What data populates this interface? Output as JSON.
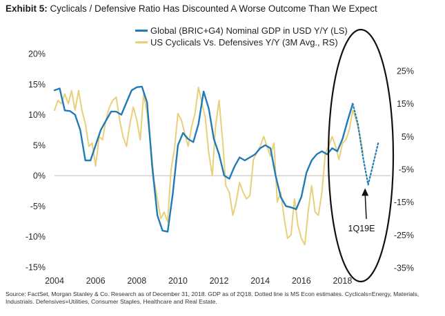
{
  "header": {
    "exhibit_label": "Exhibit 5:",
    "title_text": "Cyclicals / Defensive Ratio Has Discounted A Worse Outcome Than We Expect"
  },
  "source_note": "Source: FactSet, Morgan Stanley & Co. Research as of December 31, 2018. GDP as of 2Q18. Dotted line is MS Econ estimates. Cyclicals=Energy, Materials, Industrials. Defensives=Utilities, Consumer Staples, Healthcare and Real Estate.",
  "colors": {
    "gdp": "#1f7ab8",
    "cyc": "#e8cf7a",
    "axis": "#bbbbbb",
    "ellipse": "#111111"
  },
  "chart_data": {
    "type": "line",
    "title": "Exhibit 5: Cyclicals / Defensive Ratio Has Discounted A Worse Outcome Than We Expect",
    "xlabel": "",
    "ylabel": "",
    "xlim": [
      2004.0,
      2020.0
    ],
    "x_ticks": [
      2004,
      2006,
      2008,
      2010,
      2012,
      2014,
      2016,
      2018
    ],
    "x_tick_labels": [
      "2004",
      "2006",
      "2008",
      "2010",
      "2012",
      "2014",
      "2016",
      "2018"
    ],
    "y_left": {
      "range": [
        -15,
        20
      ],
      "ticks": [
        20,
        15,
        10,
        5,
        0,
        -5,
        -10,
        -15
      ],
      "tick_labels": [
        "20%",
        "15%",
        "10%",
        "5%",
        "0%",
        "-5%",
        "-10%",
        "-15%"
      ]
    },
    "y_right": {
      "range": [
        -35,
        25
      ],
      "ticks": [
        25,
        15,
        5,
        -5,
        -15,
        -25,
        -35
      ],
      "tick_labels": [
        "25%",
        "15%",
        "5%",
        "-5%",
        "-15%",
        "-25%",
        "-35%"
      ]
    },
    "series": [
      {
        "name": "Global (BRIC+G4) Nominal GDP in USD Y/Y (LS)",
        "axis": "left",
        "style": "solid",
        "x": [
          2004.0,
          2004.25,
          2004.5,
          2004.75,
          2005.0,
          2005.25,
          2005.5,
          2005.75,
          2006.0,
          2006.25,
          2006.5,
          2006.75,
          2007.0,
          2007.25,
          2007.5,
          2007.75,
          2008.0,
          2008.25,
          2008.5,
          2008.75,
          2009.0,
          2009.25,
          2009.5,
          2009.75,
          2010.0,
          2010.25,
          2010.5,
          2010.75,
          2011.0,
          2011.25,
          2011.5,
          2011.75,
          2012.0,
          2012.25,
          2012.5,
          2012.75,
          2013.0,
          2013.25,
          2013.5,
          2013.75,
          2014.0,
          2014.25,
          2014.5,
          2014.75,
          2015.0,
          2015.25,
          2015.5,
          2015.75,
          2016.0,
          2016.25,
          2016.5,
          2016.75,
          2017.0,
          2017.25,
          2017.5,
          2017.75,
          2018.0,
          2018.25,
          2018.5
        ],
        "y": [
          14.0,
          14.3,
          10.7,
          10.6,
          10.0,
          7.5,
          2.5,
          2.5,
          5.0,
          7.5,
          9.0,
          10.5,
          10.5,
          10.0,
          12.0,
          14.0,
          14.5,
          14.6,
          12.0,
          1.5,
          -6.5,
          -9.0,
          -9.2,
          -3.0,
          5.0,
          7.0,
          6.0,
          5.5,
          8.5,
          13.8,
          11.0,
          6.0,
          3.5,
          0.0,
          -0.5,
          1.5,
          3.0,
          2.5,
          3.0,
          3.5,
          4.5,
          5.0,
          4.5,
          0.0,
          -3.5,
          -5.0,
          -5.2,
          -5.5,
          -3.5,
          0.5,
          2.5,
          3.5,
          4.0,
          3.5,
          4.5,
          4.0,
          6.0,
          9.0,
          11.8
        ]
      },
      {
        "name": "MS Econ estimate (dotted)",
        "axis": "left",
        "style": "dotted",
        "x": [
          2018.5,
          2018.75,
          2019.0,
          2019.25,
          2019.5,
          2019.75
        ],
        "y": [
          11.8,
          8.5,
          3.0,
          -1.5,
          2.0,
          5.5
        ]
      },
      {
        "name": "US Cyclicals Vs. Defensives Y/Y (3M Avg., RS)",
        "axis": "right",
        "style": "solid",
        "x": [
          2004.0,
          2004.17,
          2004.33,
          2004.5,
          2004.67,
          2004.83,
          2005.0,
          2005.17,
          2005.33,
          2005.5,
          2005.67,
          2005.83,
          2006.0,
          2006.17,
          2006.33,
          2006.5,
          2006.67,
          2006.83,
          2007.0,
          2007.17,
          2007.33,
          2007.5,
          2007.67,
          2007.83,
          2008.0,
          2008.17,
          2008.33,
          2008.5,
          2008.67,
          2008.83,
          2009.0,
          2009.17,
          2009.33,
          2009.5,
          2009.67,
          2009.83,
          2010.0,
          2010.17,
          2010.33,
          2010.5,
          2010.67,
          2010.83,
          2011.0,
          2011.17,
          2011.33,
          2011.5,
          2011.67,
          2011.83,
          2012.0,
          2012.17,
          2012.33,
          2012.5,
          2012.67,
          2012.83,
          2013.0,
          2013.17,
          2013.33,
          2013.5,
          2013.67,
          2013.83,
          2014.0,
          2014.17,
          2014.33,
          2014.5,
          2014.67,
          2014.83,
          2015.0,
          2015.17,
          2015.33,
          2015.5,
          2015.67,
          2015.83,
          2016.0,
          2016.17,
          2016.33,
          2016.5,
          2016.67,
          2016.83,
          2017.0,
          2017.17,
          2017.33,
          2017.5,
          2017.67,
          2017.83,
          2018.0,
          2018.17,
          2018.33,
          2018.5,
          2018.67,
          2018.83,
          2019.0
        ],
        "y": [
          13,
          16,
          15,
          18,
          15,
          19,
          13,
          19,
          13,
          9,
          2,
          3,
          -4,
          5,
          4,
          10,
          14,
          16,
          17,
          10,
          5,
          2,
          9,
          14,
          10,
          4,
          18,
          12,
          3,
          -8,
          -14,
          -20,
          -18,
          -21,
          -5,
          1,
          12,
          10,
          6,
          2,
          8,
          12,
          20,
          15,
          11,
          0,
          -7,
          8,
          16,
          4,
          -10,
          -12,
          -19,
          -15,
          -9,
          -12,
          -14,
          -13,
          -2,
          0,
          2,
          5,
          2,
          -1,
          3,
          -15,
          -12,
          -20,
          -26,
          -25,
          -14,
          -22,
          -26,
          -28,
          -18,
          -10,
          -18,
          -19,
          -12,
          0,
          2,
          5,
          2,
          -2,
          3,
          4,
          7,
          13,
          10,
          6,
          0
        ]
      }
    ],
    "annotations": [
      {
        "label": "1Q19E",
        "x": 2019.1,
        "y_left": -1.5
      }
    ]
  }
}
